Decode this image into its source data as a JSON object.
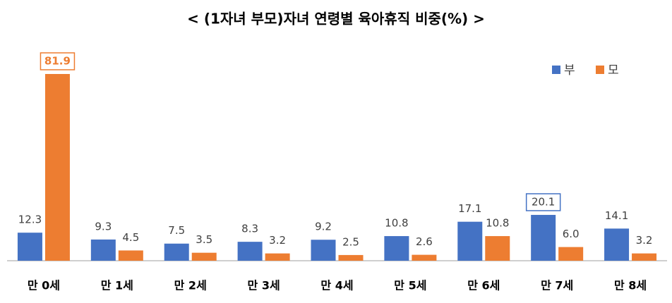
{
  "chart_data": {
    "type": "bar",
    "title": "<  (1자녀 부모)자녀 연령별 육아휴직 비중(%)  >",
    "categories": [
      "만 0세",
      "만 1세",
      "만 2세",
      "만 3세",
      "만 4세",
      "만 5세",
      "만 6세",
      "만 7세",
      "만 8세"
    ],
    "series": [
      {
        "name": "부",
        "color": "#4472c4",
        "values": [
          12.3,
          9.3,
          7.5,
          8.3,
          9.2,
          10.8,
          17.1,
          20.1,
          14.1
        ]
      },
      {
        "name": "모",
        "color": "#ed7d31",
        "values": [
          81.9,
          4.5,
          3.5,
          3.2,
          2.5,
          2.6,
          10.8,
          6.0,
          3.2
        ],
        "value_labels": [
          "81.9",
          "4.5",
          "3.5",
          "3.2",
          "2.5",
          "2.6",
          "10.8",
          "6.0",
          "3.2"
        ]
      }
    ],
    "legend": "top-right"
  }
}
